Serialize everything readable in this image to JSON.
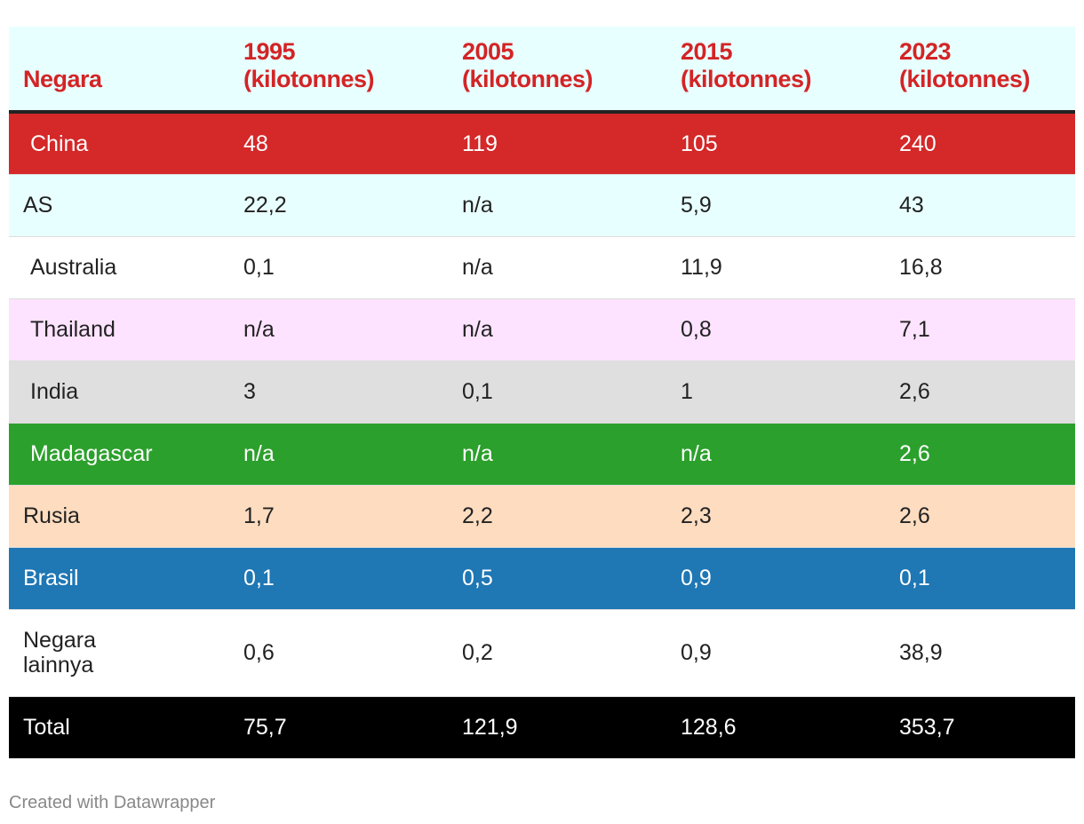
{
  "chart_data": {
    "type": "table",
    "columns": [
      "Negara",
      "1995 (kilotonnes)",
      "2005 (kilotonnes)",
      "2015 (kilotonnes)",
      "2023 (kilotonnes)"
    ],
    "header": {
      "c0": "Negara",
      "c1_line1": "1995",
      "c1_line2": "(kilotonnes)",
      "c2_line1": "2005",
      "c2_line2": "(kilotonnes)",
      "c3_line1": "2015",
      "c3_line2": "(kilotonnes)",
      "c4_line1": "2023",
      "c4_line2": "(kilotonnes)"
    },
    "rows": [
      {
        "country": "China",
        "v1995": "48",
        "v2005": "119",
        "v2015": "105",
        "v2023": "240",
        "color": "#d42829"
      },
      {
        "country": "AS",
        "v1995": "22,2",
        "v2005": "n/a",
        "v2015": "5,9",
        "v2023": "43",
        "color": "#e8ffff"
      },
      {
        "country": "Australia",
        "v1995": "0,1",
        "v2005": "n/a",
        "v2015": "11,9",
        "v2023": "16,8",
        "color": "#ffffff"
      },
      {
        "country": "Thailand",
        "v1995": "n/a",
        "v2005": "n/a",
        "v2015": "0,8",
        "v2023": "7,1",
        "color": "#fde3ff"
      },
      {
        "country": "India",
        "v1995": "3",
        "v2005": "0,1",
        "v2015": "1",
        "v2023": "2,6",
        "color": "#dfdfdf"
      },
      {
        "country": "Madagascar",
        "v1995": "n/a",
        "v2005": "n/a",
        "v2015": "n/a",
        "v2023": "2,6",
        "color": "#2ca02c"
      },
      {
        "country": "Rusia",
        "v1995": "1,7",
        "v2005": "2,2",
        "v2015": "2,3",
        "v2023": "2,6",
        "color": "#fddcc0"
      },
      {
        "country": "Brasil",
        "v1995": "0,1",
        "v2005": "0,5",
        "v2015": "0,9",
        "v2023": "0,1",
        "color": "#1f77b4"
      },
      {
        "country_line1": "Negara",
        "country_line2": "lainnya",
        "v1995": "0,6",
        "v2005": "0,2",
        "v2015": "0,9",
        "v2023": "38,9",
        "color": "#ffffff"
      }
    ],
    "total": {
      "country": "Total",
      "v1995": "75,7",
      "v2005": "121,9",
      "v2015": "128,6",
      "v2023": "353,7",
      "color": "#000000"
    }
  },
  "footer": {
    "credit": "Created with Datawrapper"
  },
  "colors": {
    "header_text": "#d32426",
    "header_bg": "#e8ffff"
  }
}
